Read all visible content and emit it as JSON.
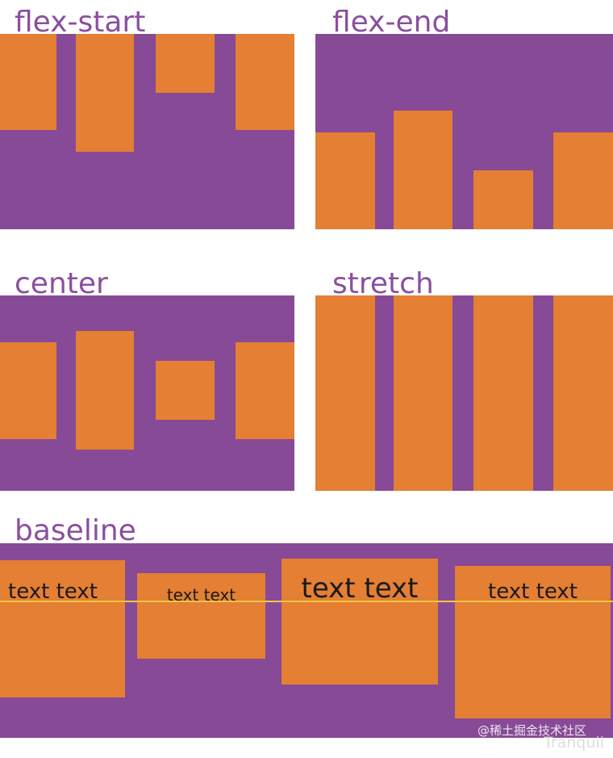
{
  "colors": {
    "container": "#874a96",
    "item": "#e47f33",
    "label": "#8a4f9e",
    "baseline": "#f5c842",
    "text": "#1a1a1a"
  },
  "sections": {
    "flex_start": {
      "label": "flex-start"
    },
    "flex_end": {
      "label": "flex-end"
    },
    "center": {
      "label": "center"
    },
    "stretch": {
      "label": "stretch"
    },
    "baseline": {
      "label": "baseline",
      "item_texts": [
        "text text",
        "text text",
        "text text",
        "text text"
      ]
    }
  },
  "watermark": {
    "site": "@稀土掘金技术社区",
    "author": "Tranquil"
  }
}
